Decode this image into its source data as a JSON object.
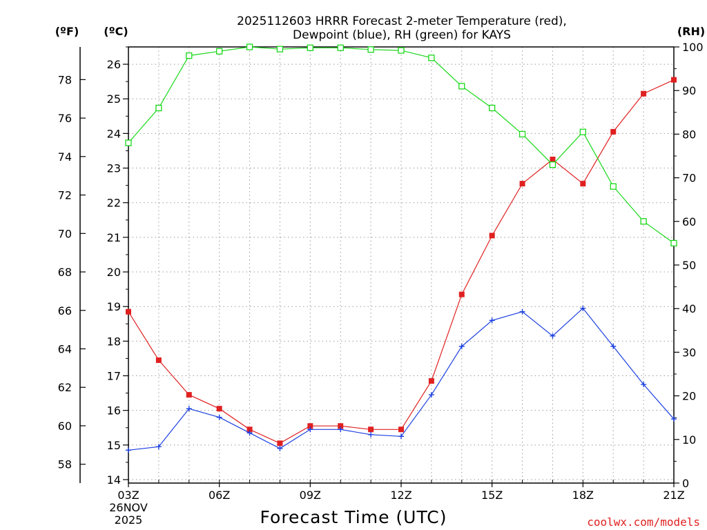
{
  "chart_data": {
    "type": "line",
    "title_line1": "2025112603 HRRR Forecast 2-meter Temperature (red),",
    "title_line2": "Dewpoint (blue), RH (green) for KAYS",
    "left_unit_f": "(ºF)",
    "left_unit_c": "(ºC)",
    "right_unit": "(RH)",
    "xlabel": "Forecast Time (UTC)",
    "credit": "coolwx.com/models",
    "date_lines": [
      "26NOV",
      "2025"
    ],
    "x_ticks": [
      "03Z",
      "06Z",
      "09Z",
      "12Z",
      "15Z",
      "18Z",
      "21Z"
    ],
    "celsius_ticks": [
      14,
      15,
      16,
      17,
      18,
      19,
      20,
      21,
      22,
      23,
      24,
      25,
      26
    ],
    "fahrenheit_ticks": [
      58,
      60,
      62,
      64,
      66,
      68,
      70,
      72,
      74,
      76,
      78
    ],
    "rh_ticks": [
      0,
      10,
      20,
      30,
      40,
      50,
      60,
      70,
      80,
      90,
      100
    ],
    "celsius_range": [
      13.9,
      26.5
    ],
    "rh_range": [
      0,
      100
    ],
    "hour_range": [
      3,
      21
    ],
    "grid": true,
    "colors": {
      "temperature": "#e02020",
      "dewpoint": "#1a3fe0",
      "rh": "#18d818",
      "grid": "#999999"
    },
    "series": [
      {
        "name": "Temperature",
        "units": "degC",
        "color": "#e02020",
        "marker": "filled-square",
        "x": [
          3,
          4,
          5,
          6,
          7,
          8,
          9,
          10,
          11,
          12,
          13,
          14,
          15,
          16,
          17,
          18,
          19,
          20,
          21
        ],
        "values": [
          18.85,
          17.45,
          16.45,
          16.05,
          15.45,
          15.05,
          15.55,
          15.55,
          15.45,
          15.45,
          16.85,
          19.35,
          21.05,
          22.55,
          23.25,
          22.55,
          24.05,
          25.15,
          25.55
        ]
      },
      {
        "name": "Dewpoint",
        "units": "degC",
        "color": "#1a3fe0",
        "marker": "plus",
        "x": [
          3,
          4,
          5,
          6,
          7,
          8,
          9,
          10,
          11,
          12,
          13,
          14,
          15,
          16,
          17,
          18,
          19,
          20,
          21
        ],
        "values": [
          14.85,
          14.95,
          16.05,
          15.8,
          15.35,
          14.9,
          15.45,
          15.45,
          15.3,
          15.25,
          16.45,
          17.85,
          18.6,
          18.85,
          18.15,
          18.95,
          17.85,
          16.75,
          15.75
        ]
      },
      {
        "name": "RH",
        "units": "percent",
        "color": "#18d818",
        "marker": "open-square",
        "x": [
          3,
          4,
          5,
          6,
          7,
          8,
          9,
          10,
          11,
          12,
          13,
          14,
          15,
          16,
          17,
          18,
          19,
          20,
          21
        ],
        "values": [
          78,
          86,
          98,
          99,
          100,
          99.5,
          99.8,
          99.8,
          99.4,
          99.2,
          97.5,
          91,
          86,
          80,
          73,
          80.5,
          68,
          60,
          55
        ]
      }
    ]
  }
}
